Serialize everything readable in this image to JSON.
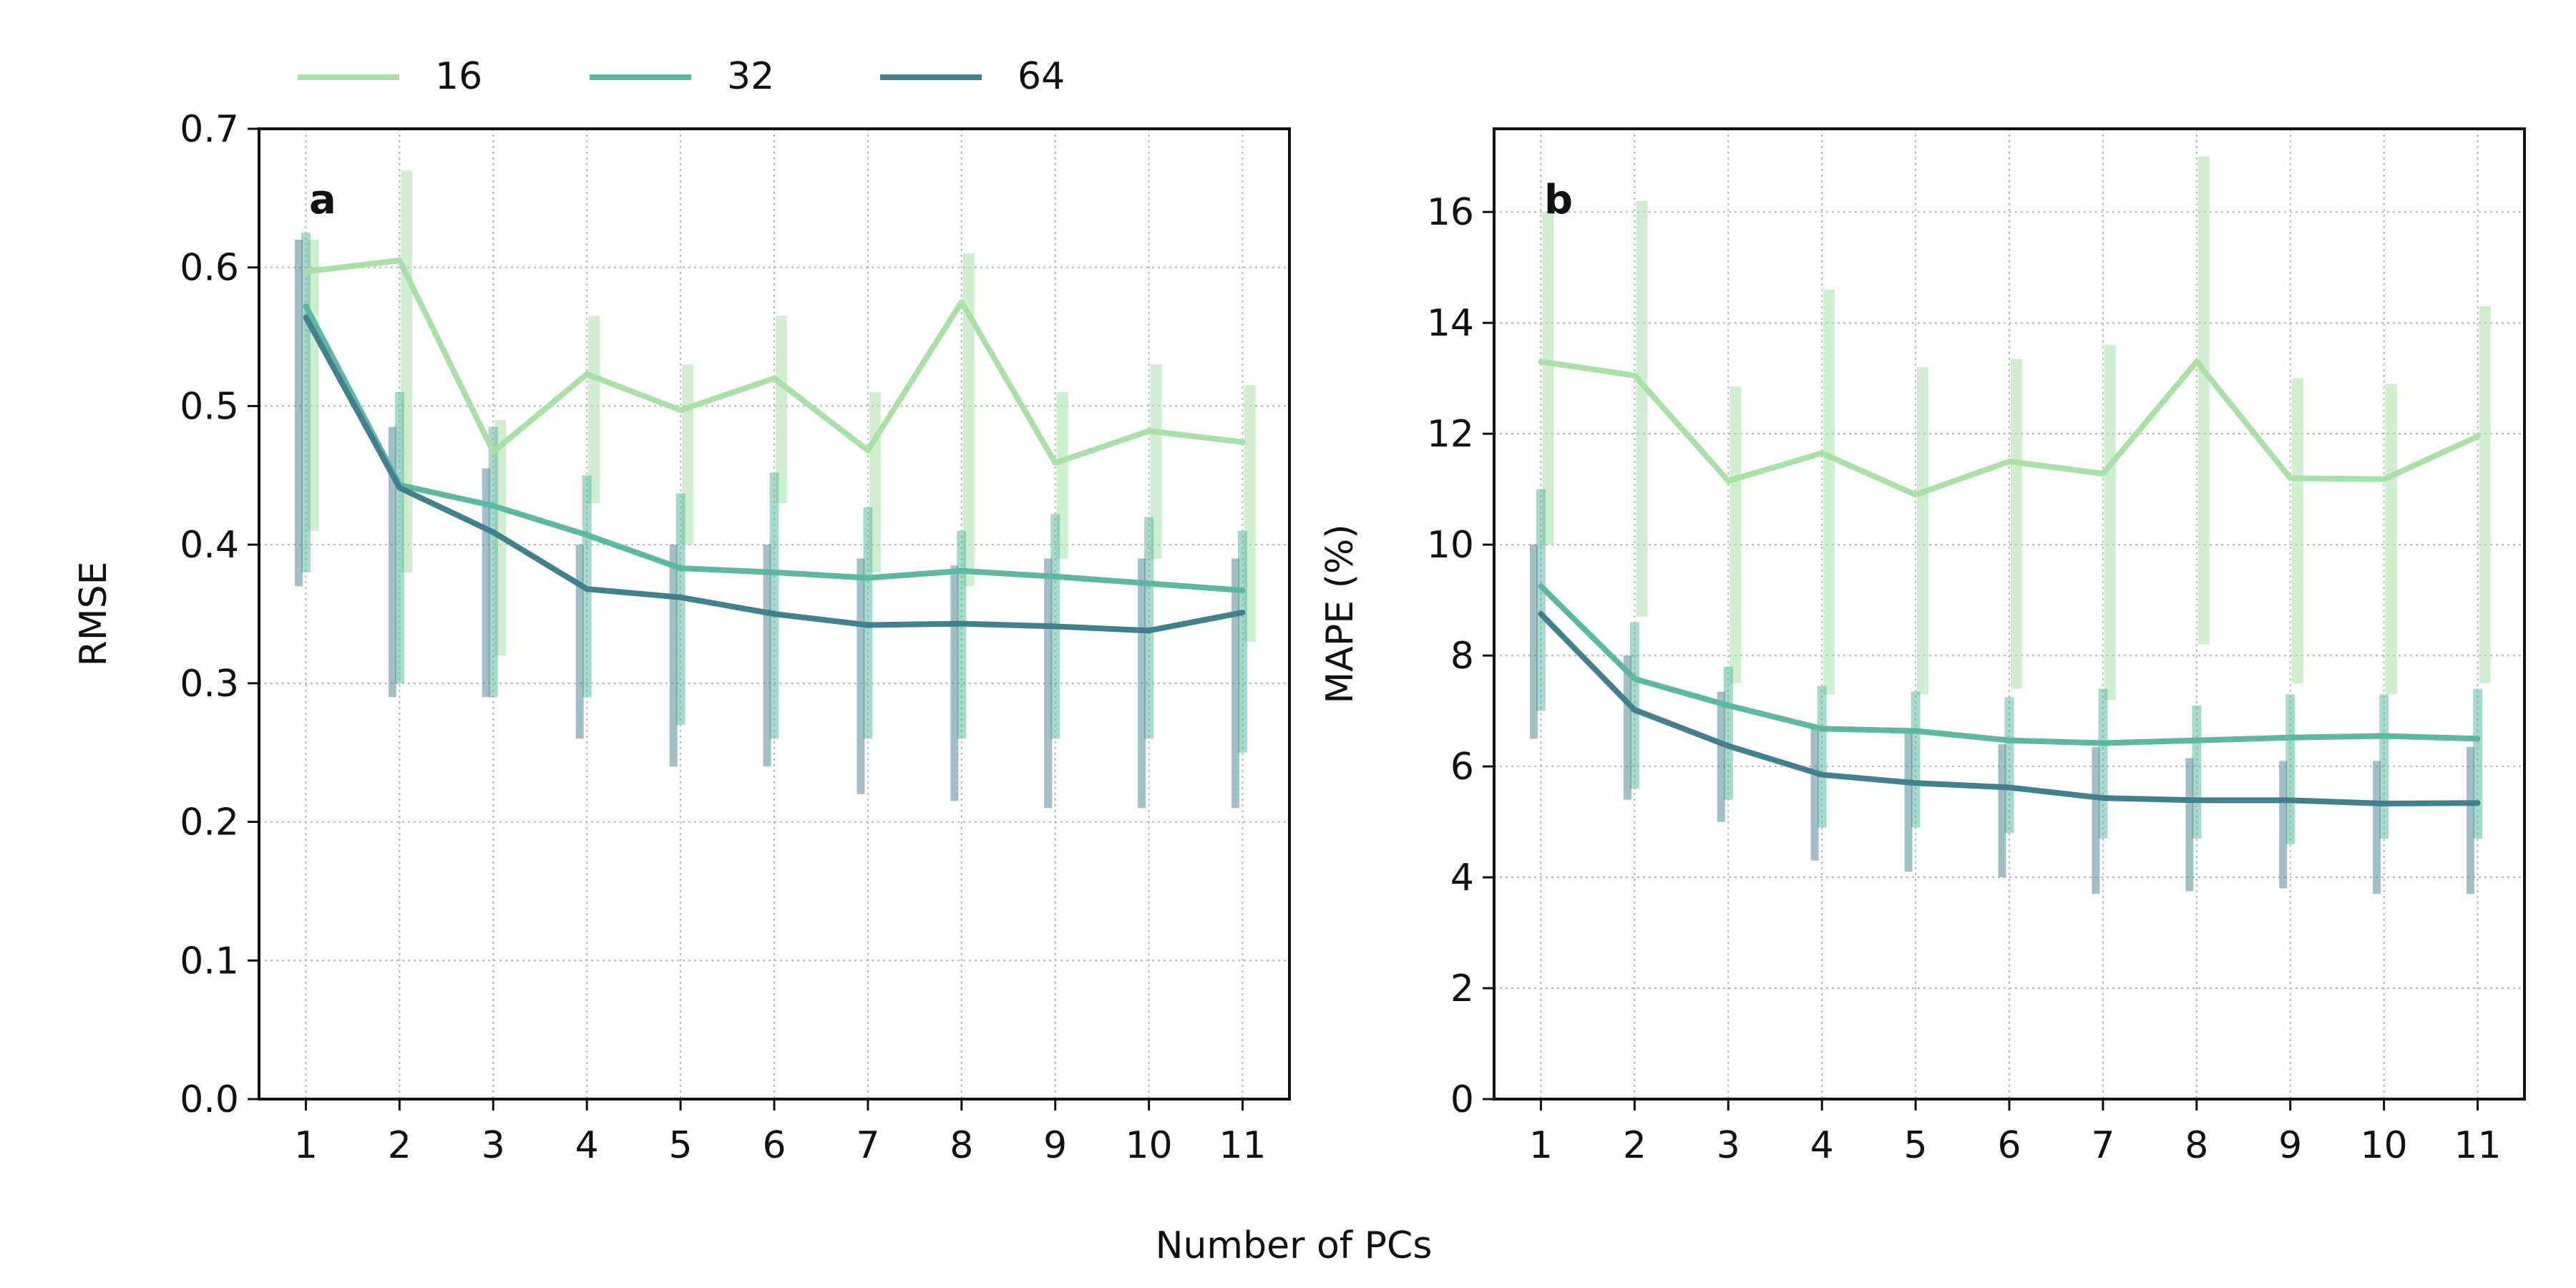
{
  "figure": {
    "shared_xlabel": "Number of PCs",
    "legend": {
      "placement": "top-left, above panels",
      "entries": [
        {
          "label": "16",
          "color": "#a8e0a6"
        },
        {
          "label": "32",
          "color": "#5cb8a1"
        },
        {
          "label": "64",
          "color": "#43808f"
        }
      ]
    }
  },
  "chart_data": [
    {
      "type": "line",
      "panel_label": "a",
      "title": "",
      "xlabel": "",
      "ylabel": "RMSE",
      "x": [
        1,
        2,
        3,
        4,
        5,
        6,
        7,
        8,
        9,
        10,
        11
      ],
      "xlim": [
        0.5,
        11.5
      ],
      "ylim": [
        0,
        0.7
      ],
      "yticks": [
        0.0,
        0.1,
        0.2,
        0.3,
        0.4,
        0.5,
        0.6,
        0.7
      ],
      "ytick_labels": [
        "0.0",
        "0.1",
        "0.2",
        "0.3",
        "0.4",
        "0.5",
        "0.6",
        "0.7"
      ],
      "grid": true,
      "error_bars": true,
      "series": [
        {
          "name": "16",
          "color": "#a8e0a6",
          "values": [
            0.597,
            0.605,
            0.467,
            0.523,
            0.497,
            0.52,
            0.468,
            0.575,
            0.459,
            0.482,
            0.474
          ],
          "err_low": [
            0.41,
            0.38,
            0.32,
            0.43,
            0.4,
            0.43,
            0.38,
            0.37,
            0.39,
            0.39,
            0.33
          ],
          "err_high": [
            0.62,
            0.67,
            0.49,
            0.565,
            0.53,
            0.565,
            0.51,
            0.61,
            0.51,
            0.53,
            0.515
          ]
        },
        {
          "name": "32",
          "color": "#5cb8a1",
          "values": [
            0.572,
            0.443,
            0.428,
            0.407,
            0.383,
            0.38,
            0.376,
            0.381,
            0.377,
            0.372,
            0.367
          ],
          "err_low": [
            0.38,
            0.3,
            0.29,
            0.29,
            0.27,
            0.26,
            0.26,
            0.26,
            0.26,
            0.26,
            0.25
          ],
          "err_high": [
            0.625,
            0.51,
            0.485,
            0.45,
            0.437,
            0.452,
            0.427,
            0.41,
            0.422,
            0.42,
            0.41
          ]
        },
        {
          "name": "64",
          "color": "#43808f",
          "values": [
            0.564,
            0.441,
            0.409,
            0.368,
            0.362,
            0.35,
            0.342,
            0.343,
            0.341,
            0.338,
            0.351
          ],
          "err_low": [
            0.37,
            0.29,
            0.29,
            0.26,
            0.24,
            0.24,
            0.22,
            0.215,
            0.21,
            0.21,
            0.21
          ],
          "err_high": [
            0.62,
            0.485,
            0.455,
            0.4,
            0.4,
            0.4,
            0.39,
            0.385,
            0.39,
            0.39,
            0.39
          ]
        }
      ]
    },
    {
      "type": "line",
      "panel_label": "b",
      "title": "",
      "xlabel": "",
      "ylabel": "MAPE (%)",
      "x": [
        1,
        2,
        3,
        4,
        5,
        6,
        7,
        8,
        9,
        10,
        11
      ],
      "xlim": [
        0.5,
        11.5
      ],
      "ylim": [
        0,
        17.5
      ],
      "yticks": [
        0,
        2,
        4,
        6,
        8,
        10,
        12,
        14,
        16
      ],
      "ytick_labels": [
        "0",
        "2",
        "4",
        "6",
        "8",
        "10",
        "12",
        "14",
        "16"
      ],
      "grid": true,
      "error_bars": true,
      "series": [
        {
          "name": "16",
          "color": "#a8e0a6",
          "values": [
            13.3,
            13.05,
            11.15,
            11.65,
            10.9,
            11.5,
            11.28,
            13.3,
            11.2,
            11.18,
            11.95
          ],
          "err_low": [
            10.0,
            8.7,
            7.5,
            7.3,
            7.3,
            7.4,
            7.2,
            8.2,
            7.5,
            7.3,
            7.5
          ],
          "err_high": [
            16.0,
            16.2,
            12.85,
            14.6,
            13.2,
            13.35,
            13.6,
            17.0,
            13.0,
            12.9,
            14.3
          ]
        },
        {
          "name": "32",
          "color": "#5cb8a1",
          "values": [
            9.25,
            7.58,
            7.1,
            6.68,
            6.64,
            6.47,
            6.42,
            6.47,
            6.52,
            6.55,
            6.5
          ],
          "err_low": [
            7.0,
            5.6,
            5.4,
            4.9,
            4.9,
            4.8,
            4.7,
            4.7,
            4.6,
            4.7,
            4.7
          ],
          "err_high": [
            11.0,
            8.6,
            7.8,
            7.45,
            7.35,
            7.25,
            7.4,
            7.1,
            7.3,
            7.3,
            7.4
          ]
        },
        {
          "name": "64",
          "color": "#43808f",
          "values": [
            8.75,
            7.02,
            6.37,
            5.85,
            5.7,
            5.62,
            5.43,
            5.39,
            5.39,
            5.33,
            5.34
          ],
          "err_low": [
            6.5,
            5.4,
            5.0,
            4.3,
            4.1,
            4.0,
            3.7,
            3.75,
            3.8,
            3.7,
            3.7
          ],
          "err_high": [
            10.0,
            8.0,
            7.35,
            6.7,
            6.6,
            6.4,
            6.35,
            6.15,
            6.1,
            6.1,
            6.35
          ]
        }
      ]
    }
  ]
}
